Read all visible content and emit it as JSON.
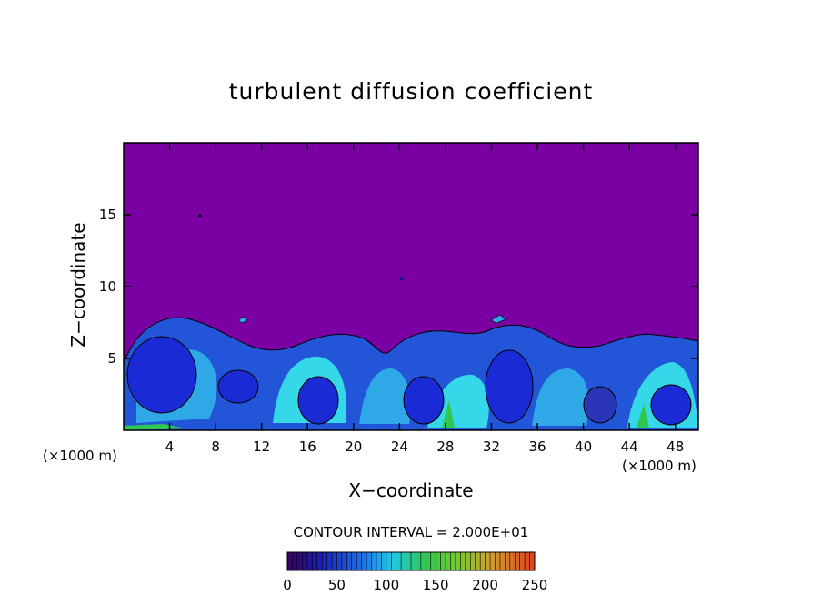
{
  "chart_data": {
    "type": "heatmap",
    "title": "turbulent diffusion coefficient",
    "xlabel": "X−coordinate",
    "ylabel": "Z−coordinate",
    "x_unit": "(×1000 m)",
    "y_unit": "(×1000 m)",
    "xlim": [
      0,
      50
    ],
    "ylim": [
      0,
      20
    ],
    "x_ticks": [
      4,
      8,
      12,
      16,
      20,
      24,
      28,
      32,
      36,
      40,
      44,
      48
    ],
    "y_ticks": [
      5,
      10,
      15
    ],
    "contour_interval": "CONTOUR INTERVAL = 2.000E+01",
    "colorbar": {
      "range": [
        0,
        250
      ],
      "ticks": [
        0,
        50,
        100,
        150,
        200,
        250
      ]
    },
    "cells": [
      {
        "x": 3.5,
        "z": 3.8,
        "value": 30
      },
      {
        "x": 13,
        "z": 3.2,
        "value": 45
      },
      {
        "x": 18,
        "z": 3.2,
        "value": 35
      },
      {
        "x": 26,
        "z": 2.8,
        "value": 35
      },
      {
        "x": 33.5,
        "z": 3.5,
        "value": 30
      },
      {
        "x": 46.5,
        "z": 2.4,
        "value": 40
      }
    ],
    "colors": {
      "background_field": "#7a00a4",
      "low": "#1a2bd6",
      "mid": "#2a8be0",
      "high": "#35d8e8"
    }
  }
}
